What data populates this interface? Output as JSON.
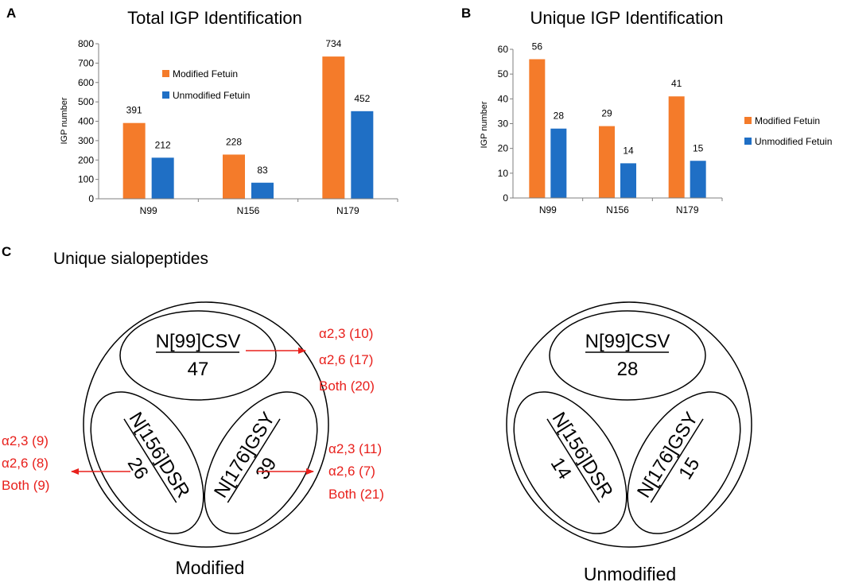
{
  "colors": {
    "modified": "#F47B2A",
    "unmodified": "#1F6FC5",
    "axis": "#7f7f7f",
    "annotation": "#E8201C",
    "text": "#000000"
  },
  "chart_data": [
    {
      "panel": "A",
      "type": "bar",
      "title": "Total IGP Identification",
      "ylabel": "IGP number",
      "xlabel": "",
      "categories": [
        "N99",
        "N156",
        "N179"
      ],
      "ylim": [
        0,
        800
      ],
      "yticks": [
        0,
        100,
        200,
        300,
        400,
        500,
        600,
        700,
        800
      ],
      "legend_position": "upper-middle",
      "series": [
        {
          "name": "Modified Fetuin",
          "values": [
            391,
            228,
            734
          ]
        },
        {
          "name": "Unmodified Fetuin",
          "values": [
            212,
            83,
            452
          ]
        }
      ]
    },
    {
      "panel": "B",
      "type": "bar",
      "title": "Unique IGP Identification",
      "ylabel": "IGP number",
      "xlabel": "",
      "categories": [
        "N99",
        "N156",
        "N179"
      ],
      "ylim": [
        0,
        60
      ],
      "yticks": [
        0,
        10,
        20,
        30,
        40,
        50,
        60
      ],
      "legend_position": "right",
      "series": [
        {
          "name": "Modified Fetuin",
          "values": [
            56,
            29,
            41
          ]
        },
        {
          "name": "Unmodified Fetuin",
          "values": [
            28,
            14,
            15
          ]
        }
      ]
    }
  ],
  "panel_c": {
    "label": "C",
    "title": "Unique sialopeptides",
    "diagrams": [
      {
        "caption": "Modified",
        "segments": [
          {
            "peptide": "N[99]CSV",
            "count": "47",
            "annotations": [
              "α2,3 (10)",
              "α2,6 (17)",
              "Both (20)"
            ]
          },
          {
            "peptide": "N[156]DSR",
            "count": "26",
            "annotations": [
              "α2,3 (9)",
              "α2,6 (8)",
              "Both (9)"
            ]
          },
          {
            "peptide": "N[176]GSY",
            "count": "39",
            "annotations": [
              "α2,3 (11)",
              "α2,6 (7)",
              "Both (21)"
            ]
          }
        ]
      },
      {
        "caption": "Unmodified",
        "segments": [
          {
            "peptide": "N[99]CSV",
            "count": "28"
          },
          {
            "peptide": "N[156]DSR",
            "count": "14"
          },
          {
            "peptide": "N[176]GSY",
            "count": "15"
          }
        ]
      }
    ]
  }
}
